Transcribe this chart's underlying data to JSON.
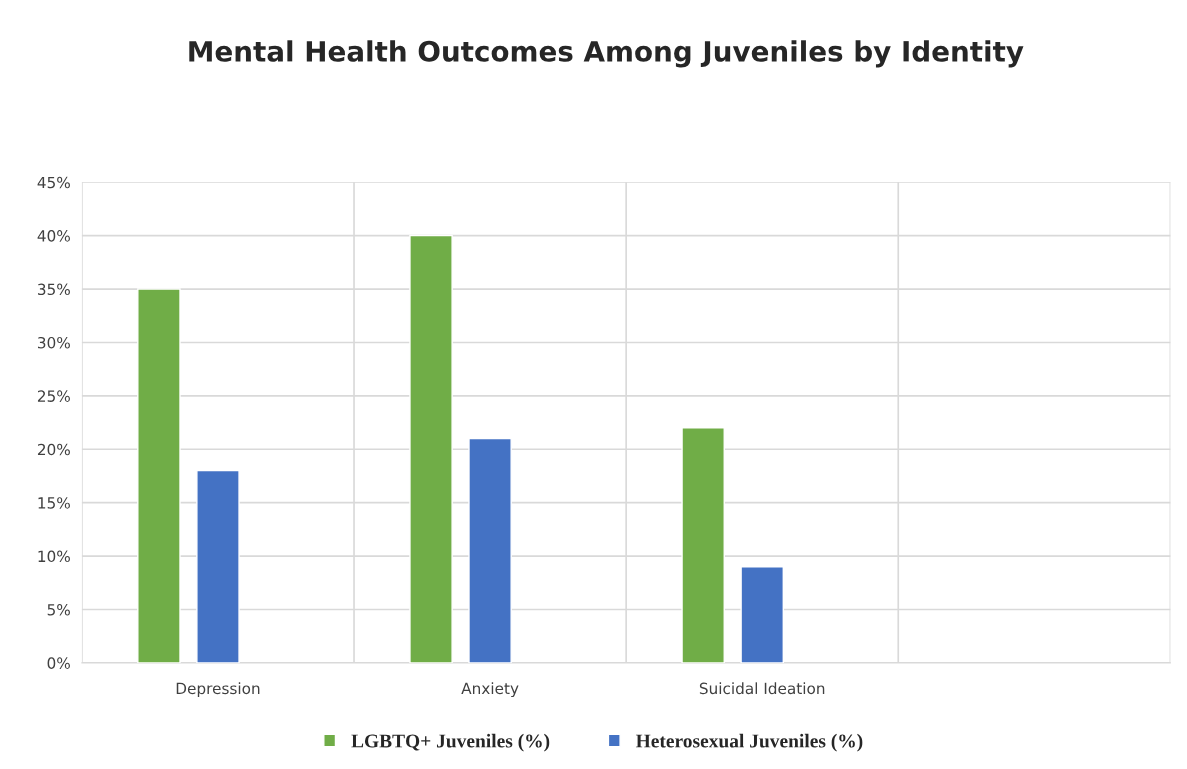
{
  "chart_data": {
    "type": "bar",
    "title": "Mental Health Outcomes Among Juveniles by Identity",
    "categories": [
      "Depression",
      "Anxiety",
      "Suicidal Ideation",
      null
    ],
    "series": [
      {
        "name": "LGBTQ+ Juveniles (%)",
        "color": "#70ad47",
        "values": [
          35,
          40,
          22,
          null
        ]
      },
      {
        "name": "Heterosexual Juveniles (%)",
        "color": "#4472c4",
        "values": [
          18,
          21,
          9,
          null
        ]
      }
    ],
    "ylim": [
      0,
      45
    ],
    "yticks": [
      {
        "value": 0,
        "label": "0%"
      },
      {
        "value": 5,
        "label": "5%"
      },
      {
        "value": 10,
        "label": "10%"
      },
      {
        "value": 15,
        "label": "15%"
      },
      {
        "value": 20,
        "label": "20%"
      },
      {
        "value": 25,
        "label": "25%"
      },
      {
        "value": 30,
        "label": "30%"
      },
      {
        "value": 35,
        "label": "35%"
      },
      {
        "value": 40,
        "label": "40%"
      },
      {
        "value": 45,
        "label": "45%"
      }
    ],
    "grid": true,
    "legend": "bottom"
  }
}
